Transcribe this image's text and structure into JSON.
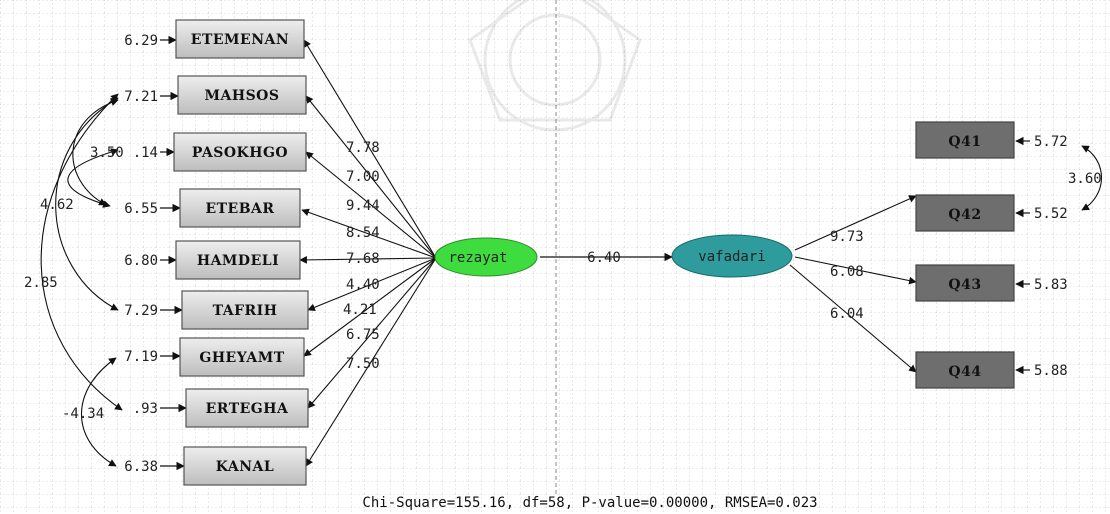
{
  "diagram": {
    "latent": {
      "rezayat": "rezayat",
      "vafadari": "vafadari"
    },
    "indicators_left": [
      {
        "name": "ETEMENAN",
        "error": "6.29",
        "loading": "7.78"
      },
      {
        "name": "MAHSOS",
        "error": "7.21",
        "loading": "7.00"
      },
      {
        "name": "PASOKHGO",
        "error": ".14",
        "loading": "9.44"
      },
      {
        "name": "ETEBAR",
        "error": "6.55",
        "loading": "8.54"
      },
      {
        "name": "HAMDELI",
        "error": "6.80",
        "loading": "7.68"
      },
      {
        "name": "TAFRIH",
        "error": "7.29",
        "loading": "4.40"
      },
      {
        "name": "GHEYAMT",
        "error": "7.19",
        "loading": "4.21"
      },
      {
        "name": "ERTEGHA",
        "error": ".93",
        "loading": "6.75"
      },
      {
        "name": "KANAL",
        "error": "6.38",
        "loading": "7.50"
      }
    ],
    "indicators_right": [
      {
        "name": "Q41",
        "error": "5.72",
        "loading": ""
      },
      {
        "name": "Q42",
        "error": "5.52",
        "loading": "9.73"
      },
      {
        "name": "Q43",
        "error": "5.83",
        "loading": "6.08"
      },
      {
        "name": "Q44",
        "error": "5.88",
        "loading": "6.04"
      }
    ],
    "structural_path": "6.40",
    "covariances": {
      "left_a": "3.50",
      "left_b": "4.62",
      "left_c": "2.85",
      "left_d": "-4.34",
      "right": "3.60"
    },
    "fit_statistics": "Chi-Square=155.16, df=58, P-value=0.00000, RMSEA=0.023"
  }
}
